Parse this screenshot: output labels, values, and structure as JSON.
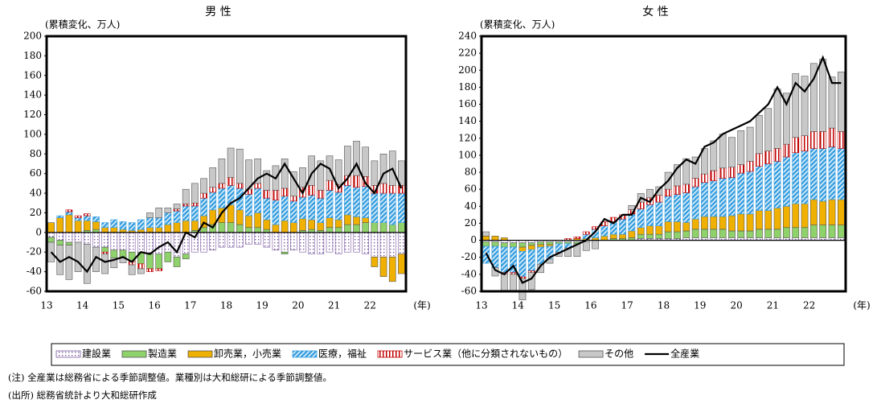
{
  "chart_data": [
    {
      "type": "bar",
      "title": "男 性",
      "subtitle": "(累積変化、万人)",
      "x_label": "(年)",
      "categories": [
        "13",
        null,
        null,
        null,
        "14",
        null,
        null,
        null,
        "15",
        null,
        null,
        null,
        "16",
        null,
        null,
        null,
        "17",
        null,
        null,
        null,
        "18",
        null,
        null,
        null,
        "19",
        null,
        null,
        null,
        "20",
        null,
        null,
        null,
        "21",
        null,
        null,
        null,
        "22",
        null,
        null,
        null
      ],
      "ylim": [
        -60,
        200
      ],
      "yticks": [
        -60,
        -40,
        -20,
        0,
        20,
        40,
        60,
        80,
        100,
        120,
        140,
        160,
        180,
        200
      ],
      "series": [
        {
          "name": "建設業",
          "color": "#7a5aa0",
          "pattern": "dots",
          "values": [
            -5,
            -8,
            -10,
            -10,
            -12,
            -15,
            -15,
            -18,
            -18,
            -20,
            -20,
            -22,
            -22,
            -20,
            -25,
            -22,
            -20,
            -20,
            -18,
            -15,
            -15,
            -15,
            -12,
            -12,
            -15,
            -18,
            -20,
            -18,
            -20,
            -22,
            -22,
            -20,
            -22,
            -20,
            -20,
            -22,
            -25,
            -25,
            -25,
            -22
          ]
        },
        {
          "name": "製造業",
          "color": "#8fd16a",
          "pattern": "solid",
          "values": [
            -5,
            -5,
            -3,
            0,
            2,
            3,
            -5,
            -8,
            -8,
            -10,
            -12,
            -15,
            -15,
            -10,
            -10,
            -5,
            2,
            5,
            8,
            10,
            10,
            8,
            5,
            5,
            3,
            0,
            -2,
            0,
            2,
            3,
            2,
            5,
            5,
            8,
            8,
            10,
            10,
            10,
            8,
            10
          ]
        },
        {
          "name": "卸売業，小売業",
          "color": "#f0b000",
          "pattern": "solid",
          "values": [
            10,
            15,
            18,
            12,
            10,
            8,
            5,
            5,
            3,
            2,
            3,
            5,
            5,
            8,
            10,
            12,
            10,
            12,
            15,
            15,
            18,
            15,
            12,
            15,
            10,
            8,
            12,
            10,
            12,
            10,
            8,
            10,
            8,
            10,
            8,
            5,
            -10,
            -20,
            -25,
            -20
          ]
        },
        {
          "name": "医療，福祉",
          "color": "#3ba0e0",
          "pattern": "hatch",
          "values": [
            0,
            2,
            3,
            3,
            5,
            5,
            5,
            8,
            8,
            8,
            10,
            10,
            10,
            12,
            12,
            15,
            15,
            18,
            18,
            20,
            20,
            22,
            22,
            25,
            22,
            25,
            25,
            22,
            22,
            25,
            25,
            28,
            28,
            30,
            30,
            32,
            30,
            30,
            32,
            30
          ]
        },
        {
          "name": "サービス業（他に分類されないもの）",
          "color": "#c00000",
          "pattern": "stripes",
          "values": [
            0,
            0,
            2,
            2,
            2,
            0,
            -2,
            0,
            0,
            -3,
            -5,
            -3,
            -2,
            0,
            2,
            2,
            3,
            5,
            5,
            5,
            8,
            5,
            5,
            5,
            8,
            10,
            8,
            5,
            10,
            10,
            8,
            10,
            8,
            10,
            12,
            10,
            8,
            10,
            8,
            8
          ]
        },
        {
          "name": "その他",
          "color": "#c8c8c8",
          "pattern": "solid",
          "values": [
            -20,
            -30,
            -35,
            -30,
            -40,
            -25,
            -20,
            -10,
            -5,
            -10,
            -5,
            5,
            10,
            5,
            5,
            15,
            20,
            15,
            20,
            25,
            30,
            35,
            30,
            25,
            20,
            25,
            30,
            25,
            20,
            30,
            30,
            25,
            25,
            30,
            35,
            30,
            25,
            30,
            35,
            25
          ]
        },
        {
          "name": "全産業",
          "color": "#000000",
          "type": "line",
          "values": [
            -20,
            -30,
            -25,
            -30,
            -40,
            -25,
            -30,
            -28,
            -25,
            -30,
            -20,
            -22,
            -15,
            -10,
            -20,
            0,
            -5,
            10,
            5,
            20,
            30,
            35,
            45,
            55,
            60,
            55,
            70,
            55,
            40,
            60,
            70,
            65,
            45,
            55,
            70,
            50,
            40,
            60,
            65,
            45
          ]
        }
      ]
    },
    {
      "type": "bar",
      "title": "女 性",
      "subtitle": "(累積変化、万人)",
      "x_label": "(年)",
      "categories": [
        "13",
        null,
        null,
        null,
        "14",
        null,
        null,
        null,
        "15",
        null,
        null,
        null,
        "16",
        null,
        null,
        null,
        "17",
        null,
        null,
        null,
        "18",
        null,
        null,
        null,
        "19",
        null,
        null,
        null,
        "20",
        null,
        null,
        null,
        "21",
        null,
        null,
        null,
        "22",
        null,
        null,
        null
      ],
      "ylim": [
        -60,
        240
      ],
      "yticks": [
        -60,
        -40,
        -20,
        0,
        20,
        40,
        60,
        80,
        100,
        120,
        140,
        160,
        180,
        200,
        220,
        240
      ],
      "series": [
        {
          "name": "建設業",
          "color": "#7a5aa0",
          "pattern": "dots",
          "values": [
            -2,
            -2,
            -3,
            -3,
            -3,
            -3,
            -2,
            -2,
            -2,
            -2,
            -2,
            -2,
            0,
            0,
            0,
            0,
            0,
            2,
            2,
            2,
            2,
            2,
            3,
            3,
            3,
            3,
            3,
            3,
            3,
            3,
            3,
            3,
            3,
            3,
            3,
            3,
            3,
            3,
            3,
            3
          ]
        },
        {
          "name": "製造業",
          "color": "#8fd16a",
          "pattern": "solid",
          "values": [
            -5,
            -5,
            -5,
            -5,
            -5,
            -3,
            -3,
            -3,
            -2,
            -2,
            -2,
            0,
            0,
            0,
            2,
            2,
            3,
            5,
            5,
            5,
            8,
            8,
            8,
            10,
            10,
            10,
            10,
            8,
            8,
            8,
            10,
            10,
            10,
            12,
            12,
            12,
            15,
            15,
            15,
            15
          ]
        },
        {
          "name": "卸売業，小売業",
          "color": "#f0b000",
          "pattern": "solid",
          "values": [
            5,
            5,
            3,
            0,
            -5,
            -5,
            -3,
            -2,
            0,
            0,
            2,
            2,
            3,
            5,
            5,
            5,
            8,
            8,
            10,
            10,
            12,
            12,
            10,
            12,
            15,
            15,
            15,
            18,
            20,
            20,
            22,
            22,
            25,
            25,
            28,
            28,
            30,
            28,
            30,
            30
          ]
        },
        {
          "name": "医療，福祉",
          "color": "#3ba0e0",
          "pattern": "hatch",
          "values": [
            -20,
            -25,
            -30,
            -30,
            -30,
            -25,
            -20,
            -15,
            -10,
            -5,
            0,
            5,
            10,
            12,
            15,
            18,
            20,
            22,
            25,
            28,
            30,
            32,
            35,
            38,
            40,
            42,
            45,
            45,
            48,
            50,
            52,
            55,
            55,
            58,
            60,
            62,
            60,
            62,
            62,
            60
          ]
        },
        {
          "name": "サービス業（他に分類されないもの）",
          "color": "#c00000",
          "pattern": "stripes",
          "values": [
            0,
            0,
            -2,
            -2,
            -2,
            -2,
            0,
            0,
            0,
            2,
            2,
            3,
            3,
            5,
            5,
            5,
            5,
            8,
            8,
            8,
            8,
            10,
            10,
            10,
            10,
            12,
            12,
            12,
            10,
            12,
            15,
            15,
            15,
            15,
            18,
            18,
            20,
            20,
            22,
            20
          ]
        },
        {
          "name": "その他",
          "color": "#c8c8c8",
          "pattern": "solid",
          "values": [
            5,
            -10,
            -20,
            -20,
            -25,
            -20,
            -10,
            -5,
            -5,
            -10,
            -15,
            -10,
            -10,
            0,
            0,
            0,
            5,
            10,
            10,
            10,
            20,
            25,
            30,
            25,
            30,
            35,
            40,
            35,
            40,
            40,
            45,
            50,
            70,
            60,
            75,
            70,
            80,
            85,
            60,
            70
          ]
        },
        {
          "name": "全産業",
          "color": "#000000",
          "type": "line",
          "values": [
            -15,
            -35,
            -40,
            -30,
            -50,
            -45,
            -30,
            -20,
            -15,
            -10,
            -5,
            0,
            10,
            25,
            20,
            30,
            30,
            50,
            45,
            60,
            70,
            85,
            95,
            90,
            110,
            115,
            125,
            130,
            135,
            140,
            150,
            160,
            180,
            160,
            185,
            175,
            190,
            215,
            185,
            185
          ]
        }
      ]
    }
  ],
  "notes": [
    "(注) 全産業は総務省による季節調整値。業種別は大和総研による季節調整値。",
    "(出所) 総務省統計より大和総研作成"
  ]
}
